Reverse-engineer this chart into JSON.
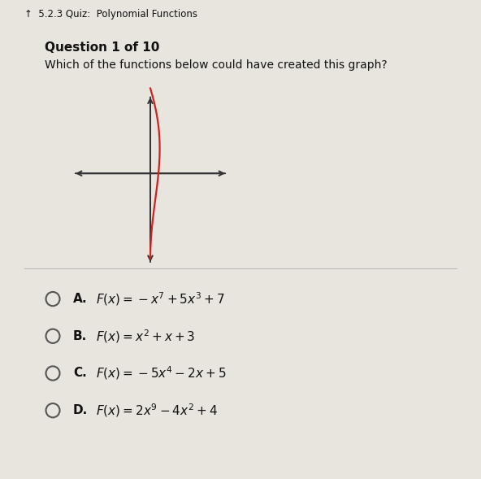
{
  "header_text": "5.2.3 Quiz:  Polynomial Functions",
  "question_label": "Question 1 of 10",
  "question_body": "Which of the functions below could have created this graph?",
  "options": [
    {
      "label": "A.",
      "formula": "$F(x) = -x^7 + 5x^3 + 7$"
    },
    {
      "label": "B.",
      "formula": "$F(x) = x^2 + x + 3$"
    },
    {
      "label": "C.",
      "formula": "$F(x) = -5x^4 - 2x + 5$"
    },
    {
      "label": "D.",
      "formula": "$F(x) = 2x^9 - 4x^2 + 4$"
    }
  ],
  "header_bg": "#9fa8c0",
  "content_bg": "#e8e5de",
  "options_bg": "#e8e5de",
  "graph_curve_color": "#cc2222",
  "axis_color": "#333333",
  "text_color": "#111111",
  "header_text_color": "#111111",
  "option_circle_color": "#555555",
  "separator_color": "#bbbbbb"
}
